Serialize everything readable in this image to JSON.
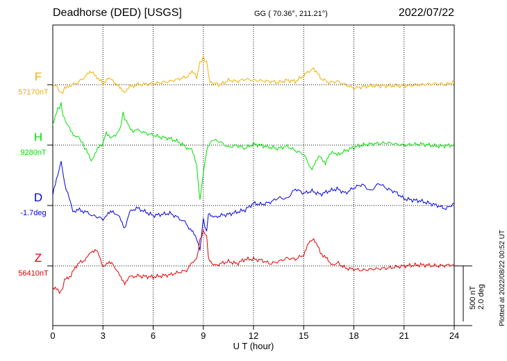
{
  "header": {
    "station": "Deadhorse (DED)  [USGS]",
    "coords": "GG ( 70.36°, 211.21°)",
    "date": "2022/07/22"
  },
  "plotted_note": "Plotted at 2022/08/22 00:52 UT",
  "scale": {
    "nt": "500 nT",
    "deg": "2.0 deg"
  },
  "colors": {
    "F": "#f0b000",
    "H": "#00e000",
    "D": "#0000e0",
    "Z": "#e00000"
  },
  "chart_data": {
    "type": "line",
    "title": "Deadhorse (DED)  [USGS]",
    "xlabel": "U T (hour)",
    "xlim": [
      0,
      24
    ],
    "xticks": [
      "0",
      "3",
      "6",
      "9",
      "12",
      "15",
      "18",
      "21",
      "24"
    ],
    "grid": true,
    "series": [
      {
        "name": "F",
        "baseline_label": "57170nT",
        "points": [
          [
            0,
            -5
          ],
          [
            0.3,
            -30
          ],
          [
            0.5,
            -80
          ],
          [
            0.7,
            -40
          ],
          [
            1,
            -10
          ],
          [
            1.5,
            20
          ],
          [
            2,
            80
          ],
          [
            2.3,
            120
          ],
          [
            2.5,
            90
          ],
          [
            2.8,
            50
          ],
          [
            3,
            10
          ],
          [
            3.3,
            50
          ],
          [
            3.6,
            40
          ],
          [
            4,
            -30
          ],
          [
            4.3,
            -60
          ],
          [
            4.6,
            -20
          ],
          [
            5,
            0
          ],
          [
            6,
            10
          ],
          [
            7,
            30
          ],
          [
            8,
            70
          ],
          [
            8.4,
            120
          ],
          [
            8.6,
            60
          ],
          [
            8.8,
            200
          ],
          [
            9,
            240
          ],
          [
            9.2,
            200
          ],
          [
            9.4,
            20
          ],
          [
            10,
            0
          ],
          [
            10.5,
            40
          ],
          [
            11,
            30
          ],
          [
            11.5,
            50
          ],
          [
            12,
            40
          ],
          [
            13,
            30
          ],
          [
            13.5,
            20
          ],
          [
            14,
            40
          ],
          [
            14.5,
            30
          ],
          [
            15,
            80
          ],
          [
            15.4,
            130
          ],
          [
            15.6,
            150
          ],
          [
            16,
            60
          ],
          [
            16.5,
            20
          ],
          [
            17,
            30
          ],
          [
            17.5,
            0
          ],
          [
            18,
            -30
          ],
          [
            18.5,
            -20
          ],
          [
            19,
            -10
          ],
          [
            20,
            -10
          ],
          [
            21,
            -10
          ],
          [
            22,
            0
          ],
          [
            23,
            10
          ],
          [
            23.5,
            0
          ],
          [
            24,
            30
          ]
        ]
      },
      {
        "name": "H",
        "baseline_label": "9280nT",
        "points": [
          [
            0,
            180
          ],
          [
            0.3,
            320
          ],
          [
            0.5,
            370
          ],
          [
            0.6,
            280
          ],
          [
            0.8,
            200
          ],
          [
            1,
            160
          ],
          [
            1.3,
            80
          ],
          [
            1.6,
            60
          ],
          [
            1.8,
            10
          ],
          [
            2,
            -50
          ],
          [
            2.3,
            -140
          ],
          [
            2.6,
            -50
          ],
          [
            3,
            20
          ],
          [
            3.2,
            120
          ],
          [
            3.5,
            60
          ],
          [
            4,
            130
          ],
          [
            4.2,
            280
          ],
          [
            4.4,
            210
          ],
          [
            4.8,
            120
          ],
          [
            5,
            140
          ],
          [
            5.5,
            110
          ],
          [
            6,
            90
          ],
          [
            6.5,
            70
          ],
          [
            7,
            60
          ],
          [
            7.5,
            30
          ],
          [
            8,
            -20
          ],
          [
            8.3,
            -40
          ],
          [
            8.6,
            -180
          ],
          [
            8.8,
            -500
          ],
          [
            9,
            -250
          ],
          [
            9.2,
            -50
          ],
          [
            9.5,
            50
          ],
          [
            10,
            30
          ],
          [
            10.5,
            -20
          ],
          [
            11,
            0
          ],
          [
            11.5,
            -30
          ],
          [
            12,
            10
          ],
          [
            13,
            -20
          ],
          [
            13.5,
            -30
          ],
          [
            14,
            -10
          ],
          [
            14.5,
            -50
          ],
          [
            15,
            -80
          ],
          [
            15.5,
            -230
          ],
          [
            15.8,
            -120
          ],
          [
            16,
            -100
          ],
          [
            16.3,
            -160
          ],
          [
            16.7,
            -50
          ],
          [
            17,
            -90
          ],
          [
            17.5,
            -50
          ],
          [
            18,
            -20
          ],
          [
            18.5,
            0
          ],
          [
            19,
            10
          ],
          [
            20,
            20
          ],
          [
            21,
            0
          ],
          [
            22,
            10
          ],
          [
            23,
            -10
          ],
          [
            24,
            0
          ]
        ]
      },
      {
        "name": "D",
        "baseline_label": "-1.7deg",
        "points": [
          [
            0,
            100
          ],
          [
            0.3,
            270
          ],
          [
            0.5,
            400
          ],
          [
            0.7,
            200
          ],
          [
            0.9,
            100
          ],
          [
            1.2,
            -50
          ],
          [
            1.6,
            -40
          ],
          [
            2,
            -60
          ],
          [
            2.4,
            -90
          ],
          [
            3,
            -120
          ],
          [
            3.3,
            -80
          ],
          [
            3.6,
            -50
          ],
          [
            4,
            -110
          ],
          [
            4.3,
            -200
          ],
          [
            4.6,
            -60
          ],
          [
            5,
            -20
          ],
          [
            6,
            -90
          ],
          [
            7,
            -70
          ],
          [
            7.5,
            -110
          ],
          [
            7.9,
            -150
          ],
          [
            8.3,
            -230
          ],
          [
            8.6,
            -300
          ],
          [
            8.8,
            -400
          ],
          [
            9,
            -120
          ],
          [
            9.2,
            -250
          ],
          [
            9.3,
            -60
          ],
          [
            9.6,
            -110
          ],
          [
            10,
            -90
          ],
          [
            10.5,
            -80
          ],
          [
            11,
            -60
          ],
          [
            11.5,
            -40
          ],
          [
            12,
            20
          ],
          [
            12.5,
            10
          ],
          [
            13,
            30
          ],
          [
            13.5,
            70
          ],
          [
            14,
            60
          ],
          [
            14.5,
            150
          ],
          [
            15,
            110
          ],
          [
            15.5,
            130
          ],
          [
            16,
            100
          ],
          [
            16.5,
            130
          ],
          [
            17,
            150
          ],
          [
            17.5,
            110
          ],
          [
            18,
            160
          ],
          [
            18.5,
            190
          ],
          [
            19,
            130
          ],
          [
            19.5,
            200
          ],
          [
            20,
            150
          ],
          [
            20.5,
            120
          ],
          [
            21,
            60
          ],
          [
            22,
            40
          ],
          [
            22.5,
            20
          ],
          [
            23,
            0
          ],
          [
            23.5,
            -30
          ],
          [
            24,
            20
          ]
        ]
      },
      {
        "name": "Z",
        "baseline_label": "56410nT",
        "points": [
          [
            0,
            -200
          ],
          [
            0.3,
            -220
          ],
          [
            0.5,
            -240
          ],
          [
            0.7,
            -130
          ],
          [
            1,
            -100
          ],
          [
            1.5,
            20
          ],
          [
            2,
            60
          ],
          [
            2.3,
            130
          ],
          [
            2.6,
            150
          ],
          [
            3,
            0
          ],
          [
            3.3,
            20
          ],
          [
            3.6,
            20
          ],
          [
            4,
            -90
          ],
          [
            4.3,
            -150
          ],
          [
            4.6,
            -100
          ],
          [
            5,
            -90
          ],
          [
            6,
            -100
          ],
          [
            7,
            -80
          ],
          [
            7.5,
            -60
          ],
          [
            8,
            -40
          ],
          [
            8.4,
            40
          ],
          [
            8.6,
            60
          ],
          [
            8.8,
            230
          ],
          [
            9,
            310
          ],
          [
            9.2,
            270
          ],
          [
            9.3,
            80
          ],
          [
            9.6,
            0
          ],
          [
            10,
            20
          ],
          [
            10.5,
            40
          ],
          [
            11,
            20
          ],
          [
            11.5,
            60
          ],
          [
            12,
            60
          ],
          [
            12.5,
            50
          ],
          [
            13,
            20
          ],
          [
            13.5,
            40
          ],
          [
            14,
            70
          ],
          [
            14.5,
            60
          ],
          [
            15,
            100
          ],
          [
            15.3,
            200
          ],
          [
            15.6,
            250
          ],
          [
            16,
            120
          ],
          [
            16.4,
            60
          ],
          [
            16.8,
            0
          ],
          [
            17,
            30
          ],
          [
            17.5,
            -20
          ],
          [
            18,
            -30
          ],
          [
            18.5,
            -40
          ],
          [
            19,
            -30
          ],
          [
            20,
            -20
          ],
          [
            21,
            0
          ],
          [
            22,
            10
          ],
          [
            23,
            0
          ],
          [
            24,
            10
          ]
        ]
      }
    ]
  }
}
